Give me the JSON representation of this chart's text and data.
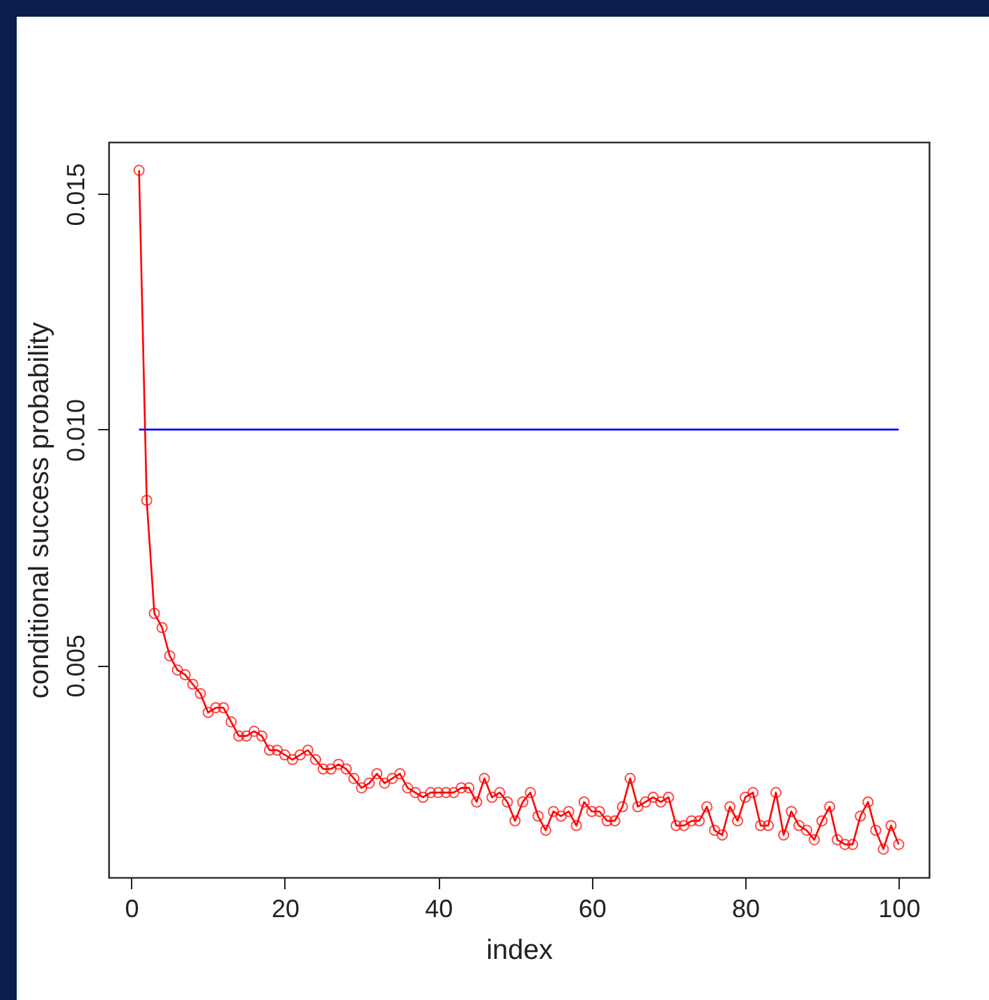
{
  "chart_data": {
    "type": "line",
    "xlabel": "index",
    "ylabel": "conditional success probability",
    "xlim": [
      -2.96,
      103.96
    ],
    "ylim": [
      0.0005,
      0.0161
    ],
    "xticks": [
      0,
      20,
      40,
      60,
      80,
      100
    ],
    "yticks": [
      0.005,
      {
        "value": 0.01,
        "label": "0.010"
      },
      0.015
    ],
    "grid": false,
    "series": [
      {
        "color": "#ff0000",
        "marker": "circle",
        "x": [
          1,
          2,
          3,
          4,
          5,
          6,
          7,
          8,
          9,
          10,
          11,
          12,
          13,
          14,
          15,
          16,
          17,
          18,
          19,
          20,
          21,
          22,
          23,
          24,
          25,
          26,
          27,
          28,
          29,
          30,
          31,
          32,
          33,
          34,
          35,
          36,
          37,
          38,
          39,
          40,
          41,
          42,
          43,
          44,
          45,
          46,
          47,
          48,
          49,
          50,
          51,
          52,
          53,
          54,
          55,
          56,
          57,
          58,
          59,
          60,
          61,
          62,
          63,
          64,
          65,
          66,
          67,
          68,
          69,
          70,
          71,
          72,
          73,
          74,
          75,
          76,
          77,
          78,
          79,
          80,
          81,
          82,
          83,
          84,
          85,
          86,
          87,
          88,
          89,
          90,
          91,
          92,
          93,
          94,
          95,
          96,
          97,
          98,
          99,
          100
        ],
        "values": [
          0.0155,
          0.0085,
          0.0061,
          0.0058,
          0.0052,
          0.0049,
          0.0048,
          0.0046,
          0.0044,
          0.004,
          0.0041,
          0.0041,
          0.0038,
          0.0035,
          0.0035,
          0.0036,
          0.0035,
          0.0032,
          0.0032,
          0.0031,
          0.003,
          0.0031,
          0.0032,
          0.003,
          0.0028,
          0.0028,
          0.0029,
          0.0028,
          0.0026,
          0.0024,
          0.0025,
          0.0027,
          0.0025,
          0.0026,
          0.0027,
          0.0024,
          0.0023,
          0.0022,
          0.0023,
          0.0023,
          0.0023,
          0.0023,
          0.0024,
          0.0024,
          0.0021,
          0.0026,
          0.0022,
          0.0023,
          0.0021,
          0.0017,
          0.0021,
          0.0023,
          0.0018,
          0.0015,
          0.0019,
          0.0018,
          0.0019,
          0.0016,
          0.0021,
          0.0019,
          0.0019,
          0.0017,
          0.0017,
          0.002,
          0.0026,
          0.002,
          0.0021,
          0.0022,
          0.0021,
          0.0022,
          0.0016,
          0.0016,
          0.0017,
          0.0017,
          0.002,
          0.0015,
          0.0014,
          0.002,
          0.0017,
          0.0022,
          0.0023,
          0.0016,
          0.0016,
          0.0023,
          0.0014,
          0.0019,
          0.0016,
          0.0015,
          0.0013,
          0.0017,
          0.002,
          0.0013,
          0.0012,
          0.0012,
          0.0018,
          0.0021,
          0.0015,
          0.0011,
          0.0016,
          0.0012
        ]
      },
      {
        "color": "#0000ff",
        "marker": "none",
        "x": [
          1,
          100
        ],
        "values": [
          0.01,
          0.01
        ]
      }
    ]
  }
}
